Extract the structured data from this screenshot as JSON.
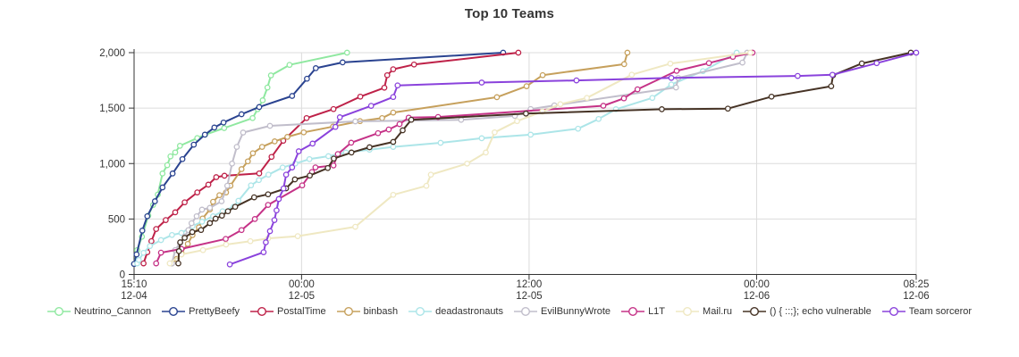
{
  "chart_data": {
    "type": "line",
    "title": "Top 10 Teams",
    "xlabel": "",
    "ylabel": "",
    "ylim": [
      0,
      2000
    ],
    "grid": true,
    "legend_position": "bottom",
    "x_unit": "minutes since first tick (12-04 15:10)",
    "x_range_minutes": [
      0,
      2475
    ],
    "y_ticks": [
      0,
      500,
      1000,
      1500,
      2000
    ],
    "x_ticks": [
      {
        "t": 0,
        "time": "15:10",
        "date": "12-04"
      },
      {
        "t": 530,
        "time": "00:00",
        "date": "12-05"
      },
      {
        "t": 1250,
        "time": "12:00",
        "date": "12-05"
      },
      {
        "t": 1970,
        "time": "00:00",
        "date": "12-06"
      },
      {
        "t": 2475,
        "time": "08:25",
        "date": "12-06"
      }
    ],
    "styles": {
      "grid_color": "#dcdcdc",
      "axis_color": "#333333",
      "text_color": "#333333",
      "marker_fill": "#ffffff",
      "background": "#ffffff"
    },
    "series": [
      {
        "name": "Neutrino_Cannon",
        "color": "#8fe8a0",
        "points": [
          [
            0,
            95
          ],
          [
            10,
            220
          ],
          [
            25,
            340
          ],
          [
            45,
            530
          ],
          [
            60,
            625
          ],
          [
            75,
            720
          ],
          [
            90,
            910
          ],
          [
            105,
            985
          ],
          [
            115,
            1065
          ],
          [
            130,
            1100
          ],
          [
            145,
            1160
          ],
          [
            200,
            1230
          ],
          [
            225,
            1260
          ],
          [
            285,
            1320
          ],
          [
            375,
            1410
          ],
          [
            391,
            1490
          ],
          [
            407,
            1570
          ],
          [
            422,
            1685
          ],
          [
            433,
            1795
          ],
          [
            492,
            1890
          ],
          [
            674,
            2000
          ]
        ]
      },
      {
        "name": "PrettyBeefy",
        "color": "#2a4390",
        "points": [
          [
            0,
            95
          ],
          [
            8,
            180
          ],
          [
            26,
            395
          ],
          [
            42,
            525
          ],
          [
            66,
            660
          ],
          [
            90,
            785
          ],
          [
            122,
            910
          ],
          [
            153,
            1040
          ],
          [
            189,
            1170
          ],
          [
            224,
            1260
          ],
          [
            254,
            1325
          ],
          [
            283,
            1370
          ],
          [
            340,
            1445
          ],
          [
            396,
            1510
          ],
          [
            500,
            1610
          ],
          [
            547,
            1765
          ],
          [
            575,
            1860
          ],
          [
            660,
            1912
          ],
          [
            1168,
            2000
          ]
        ]
      },
      {
        "name": "PostalTime",
        "color": "#be2148",
        "points": [
          [
            30,
            100
          ],
          [
            42,
            200
          ],
          [
            55,
            300
          ],
          [
            70,
            410
          ],
          [
            100,
            490
          ],
          [
            130,
            560
          ],
          [
            160,
            650
          ],
          [
            200,
            740
          ],
          [
            235,
            810
          ],
          [
            260,
            877
          ],
          [
            286,
            890
          ],
          [
            396,
            911
          ],
          [
            435,
            1060
          ],
          [
            472,
            1206
          ],
          [
            546,
            1410
          ],
          [
            631,
            1491
          ],
          [
            716,
            1603
          ],
          [
            792,
            1684
          ],
          [
            801,
            1796
          ],
          [
            820,
            1850
          ],
          [
            886,
            1893
          ],
          [
            1216,
            2000
          ]
        ]
      },
      {
        "name": "binbash",
        "color": "#c6a05c",
        "points": [
          [
            120,
            100
          ],
          [
            135,
            140
          ],
          [
            150,
            195
          ],
          [
            170,
            275
          ],
          [
            185,
            355
          ],
          [
            205,
            425
          ],
          [
            217,
            505
          ],
          [
            240,
            587
          ],
          [
            250,
            655
          ],
          [
            270,
            715
          ],
          [
            291,
            740
          ],
          [
            305,
            800
          ],
          [
            340,
            950
          ],
          [
            360,
            1020
          ],
          [
            376,
            1093
          ],
          [
            405,
            1150
          ],
          [
            445,
            1200
          ],
          [
            485,
            1240
          ],
          [
            537,
            1281
          ],
          [
            630,
            1334
          ],
          [
            715,
            1383
          ],
          [
            785,
            1410
          ],
          [
            820,
            1460
          ],
          [
            1148,
            1598
          ],
          [
            1242,
            1697
          ],
          [
            1293,
            1797
          ],
          [
            1551,
            1896
          ],
          [
            1561,
            2000
          ]
        ]
      },
      {
        "name": "deadastronauts",
        "color": "#ace5e8",
        "points": [
          [
            10,
            100
          ],
          [
            15,
            130
          ],
          [
            30,
            195
          ],
          [
            50,
            256
          ],
          [
            85,
            310
          ],
          [
            120,
            356
          ],
          [
            150,
            374
          ],
          [
            185,
            436
          ],
          [
            215,
            476
          ],
          [
            250,
            525
          ],
          [
            280,
            570
          ],
          [
            315,
            610
          ],
          [
            330,
            664
          ],
          [
            370,
            803
          ],
          [
            395,
            851
          ],
          [
            425,
            900
          ],
          [
            470,
            964
          ],
          [
            510,
            1000
          ],
          [
            555,
            1040
          ],
          [
            615,
            1066
          ],
          [
            670,
            1099
          ],
          [
            745,
            1125
          ],
          [
            820,
            1150
          ],
          [
            970,
            1187
          ],
          [
            1100,
            1228
          ],
          [
            1255,
            1260
          ],
          [
            1405,
            1314
          ],
          [
            1470,
            1402
          ],
          [
            1525,
            1490
          ],
          [
            1640,
            1592
          ],
          [
            1700,
            1713
          ],
          [
            1800,
            1833
          ],
          [
            1907,
            2000
          ]
        ]
      },
      {
        "name": "EvilBunnyWrote",
        "color": "#c1becb",
        "points": [
          [
            120,
            100
          ],
          [
            130,
            220
          ],
          [
            145,
            283
          ],
          [
            160,
            342
          ],
          [
            172,
            400
          ],
          [
            182,
            462
          ],
          [
            198,
            525
          ],
          [
            215,
            584
          ],
          [
            240,
            600
          ],
          [
            277,
            660
          ],
          [
            295,
            800
          ],
          [
            310,
            1000
          ],
          [
            325,
            1150
          ],
          [
            345,
            1280
          ],
          [
            430,
            1340
          ],
          [
            700,
            1380
          ],
          [
            1035,
            1394
          ],
          [
            1205,
            1429
          ],
          [
            1255,
            1491
          ],
          [
            1330,
            1524
          ],
          [
            1715,
            1686
          ],
          [
            1722,
            1772
          ],
          [
            1925,
            1911
          ],
          [
            1940,
            2000
          ]
        ]
      },
      {
        "name": "L1T",
        "color": "#c53287",
        "points": [
          [
            70,
            100
          ],
          [
            85,
            196
          ],
          [
            150,
            230
          ],
          [
            290,
            320
          ],
          [
            340,
            400
          ],
          [
            382,
            500
          ],
          [
            424,
            627
          ],
          [
            532,
            803
          ],
          [
            563,
            924
          ],
          [
            574,
            965
          ],
          [
            631,
            983
          ],
          [
            645,
            1086
          ],
          [
            687,
            1188
          ],
          [
            772,
            1274
          ],
          [
            806,
            1307
          ],
          [
            840,
            1355
          ],
          [
            869,
            1414
          ],
          [
            962,
            1420
          ],
          [
            1485,
            1521
          ],
          [
            1550,
            1588
          ],
          [
            1593,
            1669
          ],
          [
            1717,
            1836
          ],
          [
            1819,
            1906
          ],
          [
            1895,
            1962
          ],
          [
            1957,
            2000
          ]
        ]
      },
      {
        "name": "Mail.ru",
        "color": "#efe8c2",
        "points": [
          [
            113,
            100
          ],
          [
            150,
            180
          ],
          [
            218,
            220
          ],
          [
            291,
            270
          ],
          [
            368,
            300
          ],
          [
            424,
            325
          ],
          [
            518,
            345
          ],
          [
            700,
            430
          ],
          [
            820,
            718
          ],
          [
            925,
            799
          ],
          [
            939,
            900
          ],
          [
            1054,
            1000
          ],
          [
            1113,
            1099
          ],
          [
            1141,
            1281
          ],
          [
            1212,
            1383
          ],
          [
            1292,
            1469
          ],
          [
            1349,
            1536
          ],
          [
            1433,
            1592
          ],
          [
            1575,
            1801
          ],
          [
            1697,
            1901
          ],
          [
            1950,
            2000
          ]
        ]
      },
      {
        "name": "() { ::;}; echo vulnerable",
        "color": "#463325",
        "points": [
          [
            140,
            100
          ],
          [
            142,
            210
          ],
          [
            146,
            290
          ],
          [
            160,
            330
          ],
          [
            184,
            382
          ],
          [
            212,
            401
          ],
          [
            240,
            463
          ],
          [
            258,
            503
          ],
          [
            278,
            530
          ],
          [
            297,
            570
          ],
          [
            320,
            610
          ],
          [
            380,
            695
          ],
          [
            424,
            723
          ],
          [
            481,
            777
          ],
          [
            509,
            857
          ],
          [
            556,
            892
          ],
          [
            613,
            959
          ],
          [
            632,
            1045
          ],
          [
            688,
            1099
          ],
          [
            745,
            1147
          ],
          [
            820,
            1195
          ],
          [
            850,
            1300
          ],
          [
            877,
            1395
          ],
          [
            1240,
            1450
          ],
          [
            1670,
            1490
          ],
          [
            1879,
            1495
          ],
          [
            2017,
            1603
          ],
          [
            2206,
            1697
          ],
          [
            2212,
            1796
          ],
          [
            2303,
            1903
          ],
          [
            2458,
            2000
          ]
        ]
      },
      {
        "name": "Team sorceror",
        "color": "#8a42dc",
        "points": [
          [
            303,
            90
          ],
          [
            410,
            200
          ],
          [
            417,
            290
          ],
          [
            430,
            390
          ],
          [
            444,
            490
          ],
          [
            451,
            578
          ],
          [
            458,
            680
          ],
          [
            473,
            775
          ],
          [
            481,
            900
          ],
          [
            500,
            965
          ],
          [
            521,
            1111
          ],
          [
            565,
            1180
          ],
          [
            637,
            1330
          ],
          [
            651,
            1417
          ],
          [
            750,
            1520
          ],
          [
            820,
            1600
          ],
          [
            834,
            1705
          ],
          [
            1100,
            1730
          ],
          [
            1400,
            1750
          ],
          [
            1700,
            1772
          ],
          [
            2100,
            1790
          ],
          [
            2210,
            1800
          ],
          [
            2350,
            1905
          ],
          [
            2475,
            2000
          ]
        ]
      }
    ]
  }
}
